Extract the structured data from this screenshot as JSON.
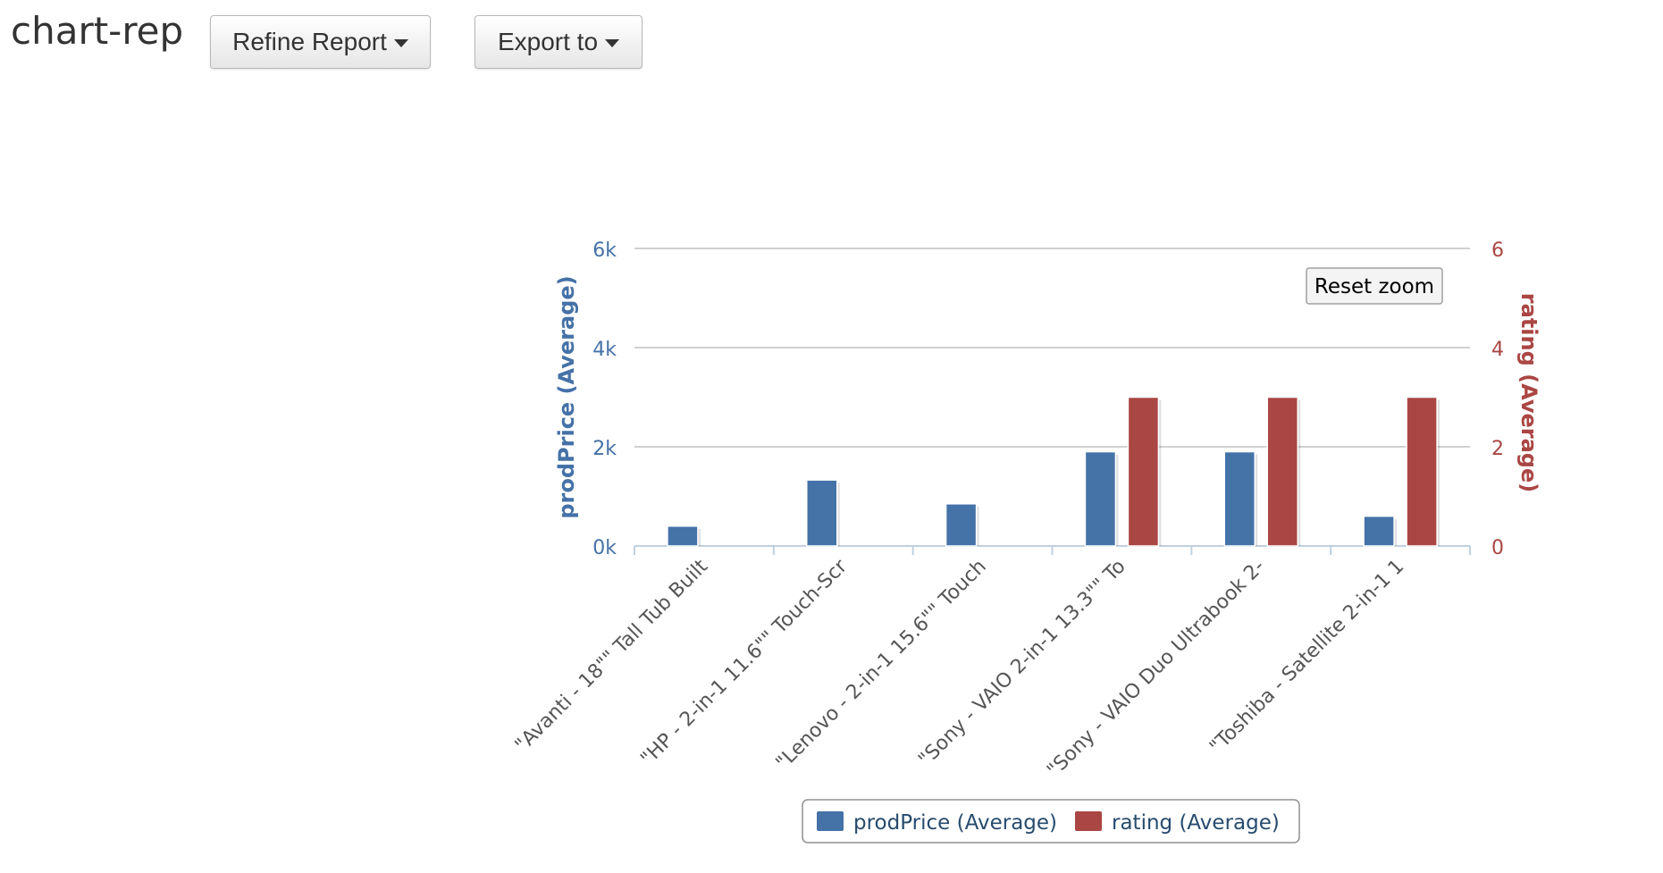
{
  "header": {
    "title": "chart-rep",
    "refine_label": "Refine Report",
    "export_label": "Export to"
  },
  "chart": {
    "reset_zoom_label": "Reset zoom"
  },
  "colors": {
    "price": "#4572a7",
    "rating": "#aa4643",
    "grid": "#c0c0c0",
    "axis": "#c0d0e0",
    "label": "#555555"
  },
  "chart_data": {
    "type": "bar",
    "categories": [
      "\"Avanti - 18\"\" Tall Tub Built",
      "\"HP - 2-in-1 11.6\"\" Touch-Scr",
      "\"Lenovo - 2-in-1 15.6\"\" Touch",
      "\"Sony - VAIO 2-in-1 13.3\"\" To",
      "\"Sony - VAIO Duo Ultrabook 2-",
      "\"Toshiba - Satellite 2-in-1 1"
    ],
    "series": [
      {
        "name": "prodPrice (Average)",
        "axis": "left",
        "values": [
          400,
          1330,
          850,
          1900,
          1900,
          600
        ]
      },
      {
        "name": "rating (Average)",
        "axis": "right",
        "values": [
          0,
          0,
          0,
          3,
          3,
          3
        ]
      }
    ],
    "ylabel_left": "prodPrice (Average)",
    "ylabel_right": "rating (Average)",
    "ylim_left": [
      0,
      6000
    ],
    "ylim_right": [
      0,
      6
    ],
    "yticks_left": [
      "0k",
      "2k",
      "4k",
      "6k"
    ],
    "yticks_right": [
      "0",
      "2",
      "4",
      "6"
    ],
    "grid": true,
    "legend": "bottom-center"
  }
}
